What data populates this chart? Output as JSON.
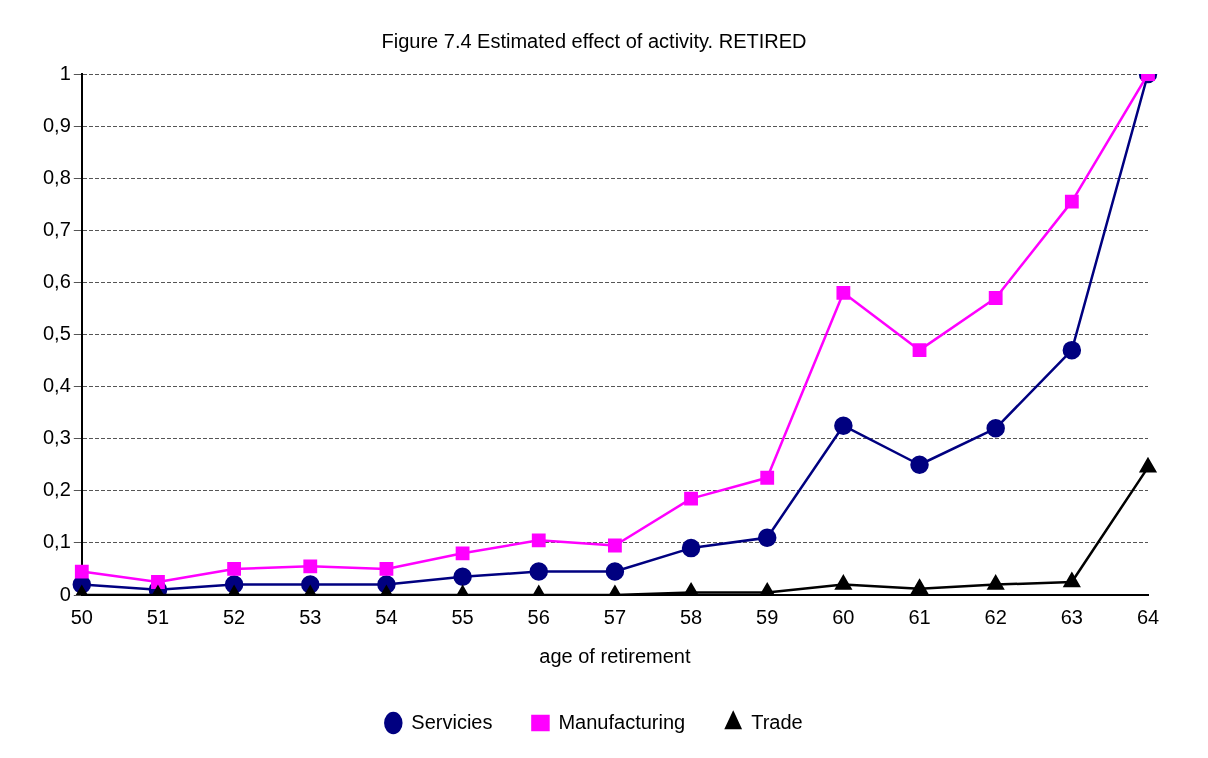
{
  "chart_data": {
    "type": "line",
    "title": "Figure 7.4 Estimated effect of activity. RETIRED",
    "xlabel": "age of retirement",
    "categories": [
      "50",
      "51",
      "52",
      "53",
      "54",
      "55",
      "56",
      "57",
      "58",
      "59",
      "60",
      "61",
      "62",
      "63",
      "64"
    ],
    "series": [
      {
        "name": "Servicies",
        "color": "#000080",
        "marker": "circle",
        "values": [
          0.02,
          0.01,
          0.02,
          0.02,
          0.02,
          0.035,
          0.045,
          0.045,
          0.09,
          0.11,
          0.325,
          0.25,
          0.32,
          0.47,
          1
        ]
      },
      {
        "name": "Manufacturing",
        "color": "#ff00ff",
        "marker": "square",
        "values": [
          0.045,
          0.025,
          0.05,
          0.055,
          0.05,
          0.08,
          0.105,
          0.095,
          0.185,
          0.225,
          0.58,
          0.47,
          0.57,
          0.755,
          1
        ]
      },
      {
        "name": "Trade",
        "color": "#000000",
        "marker": "triangle",
        "values": [
          0,
          0,
          0,
          0,
          0,
          0,
          0,
          0,
          0.005,
          0.005,
          0.02,
          0.012,
          0.02,
          0.025,
          0.245
        ]
      }
    ],
    "ylim": [
      0,
      1
    ],
    "yticks": [
      0,
      {
        "value": 0.1,
        "label": "0,1"
      },
      {
        "value": 0.2,
        "label": "0,2"
      },
      {
        "value": 0.3,
        "label": "0,3"
      },
      {
        "value": 0.4,
        "label": "0,4"
      },
      {
        "value": 0.5,
        "label": "0,5"
      },
      {
        "value": 0.6,
        "label": "0,6"
      },
      {
        "value": 0.7,
        "label": "0,7"
      },
      {
        "value": 0.8,
        "label": "0,8"
      },
      {
        "value": 0.9,
        "label": "0,9"
      },
      1
    ],
    "grid": "y",
    "legend": "bottom",
    "line_style": "solid"
  }
}
